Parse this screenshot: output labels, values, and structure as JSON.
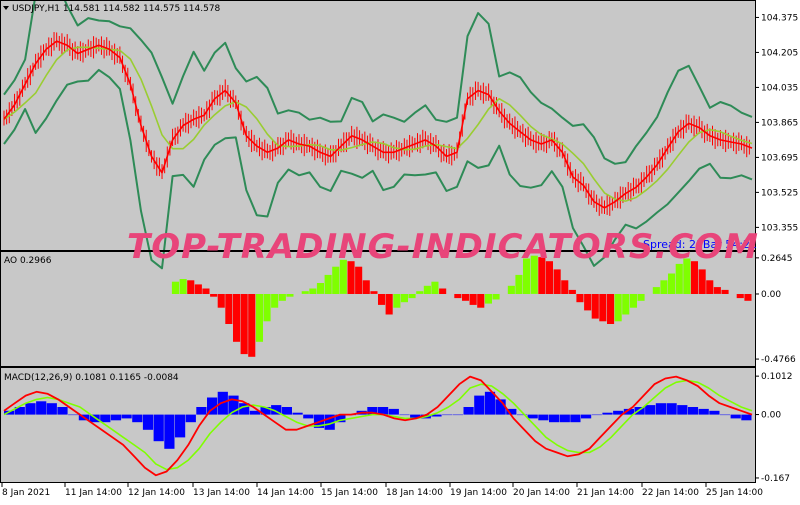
{
  "chart": {
    "symbol_label": "USDJPY,H1  114.581 114.582 114.575 114.578",
    "spread_text": "Spread: 21Bar  54:21",
    "watermark": "TOP-TRADING-INDICATORS.COM",
    "colors": {
      "pane_bg": "#c8c8c8",
      "candle": "#ff0000",
      "bands": "#2e8b57",
      "ma_fast": "#ff0000",
      "ma_slow": "#9acd32",
      "ao_up": "#7fff00",
      "ao_down": "#ff0000",
      "macd_hist": "#0000ff",
      "macd_main": "#ff0000",
      "macd_signal": "#7fff00",
      "watermark": "#e8457a",
      "spread": "#0000ff"
    },
    "icon": "triangle-down-icon"
  },
  "chart_data": [
    {
      "type": "line",
      "name": "price",
      "title": "USDJPY,H1  114.581 114.582 114.575 114.578",
      "ylim": [
        103.25,
        104.45
      ],
      "y_ticks": [
        "104.375",
        "104.205",
        "104.035",
        "103.865",
        "103.695",
        "103.525",
        "103.355"
      ],
      "x_ticks": [
        "8 Jan 2021",
        "11 Jan 14:00",
        "12 Jan 14:00",
        "13 Jan 14:00",
        "14 Jan 14:00",
        "15 Jan 14:00",
        "18 Jan 14:00",
        "19 Jan 14:00",
        "20 Jan 14:00",
        "21 Jan 14:00",
        "22 Jan 14:00",
        "25 Jan 14:00"
      ],
      "series": [
        {
          "values": [
            103.88,
            103.95,
            104.05,
            104.15,
            104.22,
            104.26,
            104.24,
            104.2,
            104.22,
            104.24,
            104.22,
            104.18,
            104.05,
            103.85,
            103.7,
            103.62,
            103.78,
            103.85,
            103.88,
            103.9,
            103.98,
            104.02,
            103.96,
            103.8,
            103.75,
            103.72,
            103.74,
            103.78,
            103.76,
            103.75,
            103.72,
            103.7,
            103.75,
            103.8,
            103.78,
            103.75,
            103.72,
            103.72,
            103.74,
            103.76,
            103.78,
            103.75,
            103.7,
            103.72,
            103.98,
            104.02,
            104.0,
            103.92,
            103.86,
            103.82,
            103.78,
            103.76,
            103.78,
            103.72,
            103.6,
            103.56,
            103.48,
            103.45,
            103.48,
            103.52,
            103.55,
            103.6,
            103.66,
            103.74,
            103.82,
            103.86,
            103.84,
            103.8,
            103.78,
            103.77,
            103.76,
            103.74
          ]
        }
      ]
    },
    {
      "type": "bar",
      "name": "AO",
      "title": "AO 0.2966",
      "ylim": [
        -0.52,
        0.3
      ],
      "y_ticks": [
        "0.2645",
        "0.00",
        "-0.4766"
      ],
      "values": [
        0.0,
        0.0,
        0.0,
        0.0,
        0.0,
        0.0,
        0.0,
        0.0,
        0.0,
        0.0,
        0.0,
        0.0,
        0.0,
        0.0,
        0.0,
        0.0,
        0.0,
        0.0,
        0.0,
        0.0,
        0.0,
        0.0,
        0.09,
        0.11,
        0.1,
        0.07,
        0.04,
        -0.02,
        -0.1,
        -0.22,
        -0.35,
        -0.44,
        -0.46,
        -0.35,
        -0.2,
        -0.1,
        -0.05,
        -0.02,
        0.0,
        0.02,
        0.04,
        0.08,
        0.14,
        0.2,
        0.25,
        0.24,
        0.2,
        0.1,
        0.02,
        -0.08,
        -0.15,
        -0.1,
        -0.06,
        -0.03,
        0.02,
        0.06,
        0.09,
        0.04,
        0.0,
        -0.03,
        -0.05,
        -0.08,
        -0.1,
        -0.07,
        -0.04,
        0.0,
        0.06,
        0.14,
        0.26,
        0.28,
        0.27,
        0.24,
        0.18,
        0.1,
        0.03,
        -0.06,
        -0.12,
        -0.18,
        -0.2,
        -0.22,
        -0.2,
        -0.15,
        -0.1,
        -0.05,
        0.0,
        0.05,
        0.1,
        0.15,
        0.22,
        0.26,
        0.24,
        0.18,
        0.1,
        0.05,
        0.03,
        0.0,
        -0.03,
        -0.05
      ]
    },
    {
      "type": "bar",
      "name": "MACD",
      "title": "MACD(12,26,9) 0.1081 0.1165 -0.0084",
      "ylim": [
        -0.175,
        0.12
      ],
      "y_ticks": [
        "0.1012",
        "0.00",
        "-0.167"
      ],
      "values": [
        0.01,
        0.02,
        0.03,
        0.035,
        0.03,
        0.02,
        0.0,
        -0.015,
        -0.02,
        -0.02,
        -0.015,
        -0.01,
        -0.02,
        -0.04,
        -0.07,
        -0.09,
        -0.06,
        -0.02,
        0.02,
        0.045,
        0.06,
        0.05,
        0.03,
        0.01,
        0.02,
        0.025,
        0.02,
        0.005,
        -0.01,
        -0.035,
        -0.04,
        -0.02,
        0.0,
        0.01,
        0.02,
        0.02,
        0.015,
        0.0,
        -0.01,
        -0.01,
        -0.005,
        0.0,
        0.0,
        0.02,
        0.05,
        0.06,
        0.04,
        0.015,
        0.0,
        -0.01,
        -0.015,
        -0.02,
        -0.02,
        -0.02,
        -0.01,
        0.0,
        0.005,
        0.01,
        0.015,
        0.02,
        0.025,
        0.03,
        0.03,
        0.025,
        0.02,
        0.015,
        0.01,
        0.0,
        -0.01,
        -0.015
      ],
      "series": [
        {
          "values": [
            0.01,
            0.03,
            0.05,
            0.06,
            0.055,
            0.04,
            0.02,
            0.0,
            -0.02,
            -0.04,
            -0.06,
            -0.08,
            -0.11,
            -0.14,
            -0.16,
            -0.15,
            -0.12,
            -0.08,
            -0.03,
            0.01,
            0.03,
            0.04,
            0.035,
            0.02,
            0.0,
            -0.02,
            -0.04,
            -0.04,
            -0.03,
            -0.02,
            -0.01,
            0.0,
            0.0,
            0.005,
            0.005,
            0.0,
            -0.01,
            -0.015,
            -0.01,
            0.0,
            0.02,
            0.05,
            0.08,
            0.1,
            0.09,
            0.06,
            0.03,
            -0.01,
            -0.04,
            -0.07,
            -0.09,
            -0.1,
            -0.11,
            -0.105,
            -0.09,
            -0.06,
            -0.03,
            0.0,
            0.02,
            0.05,
            0.08,
            0.095,
            0.1,
            0.09,
            0.075,
            0.05,
            0.03,
            0.02,
            0.01,
            0.0
          ]
        },
        {
          "values": [
            0.0,
            0.015,
            0.03,
            0.04,
            0.045,
            0.04,
            0.03,
            0.02,
            0.0,
            -0.02,
            -0.04,
            -0.06,
            -0.08,
            -0.1,
            -0.13,
            -0.145,
            -0.14,
            -0.12,
            -0.09,
            -0.05,
            -0.02,
            0.005,
            0.02,
            0.025,
            0.02,
            0.01,
            -0.005,
            -0.02,
            -0.03,
            -0.03,
            -0.025,
            -0.015,
            -0.01,
            -0.005,
            0.0,
            0.0,
            -0.005,
            -0.01,
            -0.01,
            -0.005,
            0.005,
            0.02,
            0.04,
            0.07,
            0.08,
            0.075,
            0.055,
            0.03,
            0.0,
            -0.03,
            -0.06,
            -0.08,
            -0.095,
            -0.1,
            -0.1,
            -0.085,
            -0.06,
            -0.03,
            0.0,
            0.02,
            0.045,
            0.07,
            0.085,
            0.09,
            0.085,
            0.07,
            0.05,
            0.035,
            0.02,
            0.01
          ]
        }
      ]
    }
  ]
}
